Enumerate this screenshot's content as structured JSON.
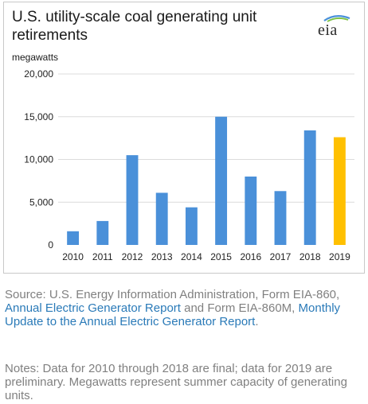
{
  "chart_title": "U.S. utility-scale coal generating unit retirements",
  "logo_text": "eia",
  "source": {
    "prefix": "Source: U.S. Energy Information Administration, Form EIA-860, ",
    "link1": "Annual Electric Generator Report",
    "middle": " and Form EIA-860M, ",
    "link2": "Monthly Update to the Annual Electric Generator Report",
    "suffix": "."
  },
  "footnote": "Notes: Data for 2010 through 2018 are final; data for 2019 are preliminary. Megawatts represent summer capacity of generating units.",
  "colors": {
    "bar": "#4a90d9",
    "highlight": "#ffc000",
    "grid": "#dcdcdc",
    "link": "#2a7ab8"
  },
  "chart_data": {
    "type": "bar",
    "title": "U.S. utility-scale coal generating unit retirements",
    "ylabel": "megawatts",
    "xlabel": "",
    "categories": [
      "2010",
      "2011",
      "2012",
      "2013",
      "2014",
      "2015",
      "2016",
      "2017",
      "2018",
      "2019"
    ],
    "values": [
      1600,
      2800,
      10500,
      6100,
      4400,
      15000,
      8000,
      6300,
      13400,
      12600
    ],
    "highlight_category": "2019",
    "ylim": [
      0,
      20000
    ],
    "yticks": [
      0,
      5000,
      10000,
      15000,
      20000
    ],
    "ytick_labels": [
      "0",
      "5,000",
      "10,000",
      "15,000",
      "20,000"
    ],
    "grid": true,
    "legend": "none"
  }
}
